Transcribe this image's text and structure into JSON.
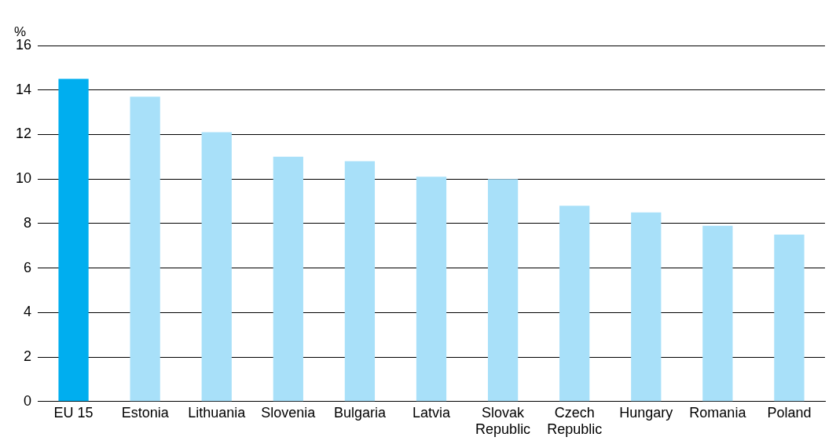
{
  "chart_data": {
    "type": "bar",
    "ylabel": "%",
    "categories": [
      "EU 15",
      "Estonia",
      "Lithuania",
      "Slovenia",
      "Bulgaria",
      "Latvia",
      "Slovak Republic",
      "Czech Republic",
      "Hungary",
      "Romania",
      "Poland"
    ],
    "values": [
      14.5,
      13.7,
      12.1,
      11.0,
      10.8,
      10.1,
      10.0,
      8.8,
      8.5,
      7.9,
      7.5
    ],
    "colors": [
      "#00aeef",
      "#a8e0f9",
      "#a8e0f9",
      "#a8e0f9",
      "#a8e0f9",
      "#a8e0f9",
      "#a8e0f9",
      "#a8e0f9",
      "#a8e0f9",
      "#a8e0f9",
      "#a8e0f9"
    ],
    "ylim": [
      0,
      16
    ],
    "yticks": [
      0,
      2,
      4,
      6,
      8,
      10,
      12,
      14,
      16
    ],
    "grid": "y",
    "legend": false
  }
}
